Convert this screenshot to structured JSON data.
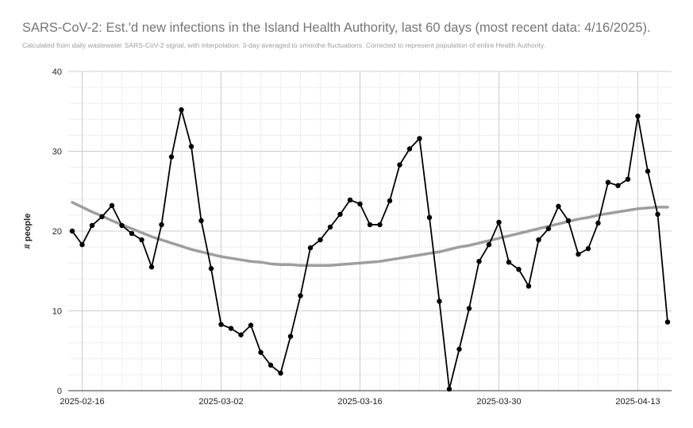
{
  "chart_data": {
    "type": "line",
    "title": "SARS-CoV-2: Est.'d new infections in the Island Health Authority, last 60 days (most recent data: 4/16/2025).",
    "subtitle": "Calculated from daily wastewater SARS-CoV-2 signal, with interpolation. 3-day averaged to smoothe fluctuations. Corrected to represent population of entire Health Authority.",
    "xlabel": "",
    "ylabel": "# people",
    "ylim": [
      0,
      40
    ],
    "yticks": [
      0,
      10,
      20,
      30,
      40
    ],
    "x_start_date": "2025-02-15",
    "xticks": [
      "2025-02-16",
      "2025-03-02",
      "2025-03-16",
      "2025-03-30",
      "2025-04-13"
    ],
    "grid": true,
    "legend": "none",
    "colors": {
      "series": "#000000",
      "trend": "#9e9e9e",
      "grid": "#e0e0e0",
      "axis": "#333333"
    },
    "series": [
      {
        "values": [
          20.0,
          18.3,
          20.7,
          21.8,
          23.2,
          20.7,
          19.7,
          18.9,
          15.5,
          20.8,
          29.3,
          35.2,
          30.6,
          21.3,
          15.3,
          8.3,
          7.8,
          7.0,
          8.2,
          4.8,
          3.2,
          2.2,
          6.8,
          11.9,
          17.9,
          18.9,
          20.5,
          22.1,
          23.9,
          23.4,
          20.8,
          20.8,
          23.8,
          28.3,
          30.3,
          31.6,
          21.7,
          11.2,
          0.2,
          5.2,
          10.3,
          16.2,
          18.3,
          21.1,
          16.1,
          15.2,
          13.1,
          18.9,
          20.3,
          23.1,
          21.3,
          17.1,
          17.8,
          21.0,
          26.1,
          25.7,
          26.5,
          34.4,
          27.5,
          22.1,
          8.6
        ]
      },
      {
        "kind": "trendline",
        "values": [
          23.6,
          23.0,
          22.4,
          21.9,
          21.3,
          20.8,
          20.3,
          19.8,
          19.3,
          18.9,
          18.5,
          18.1,
          17.7,
          17.4,
          17.1,
          16.8,
          16.6,
          16.4,
          16.2,
          16.1,
          15.9,
          15.8,
          15.8,
          15.7,
          15.7,
          15.7,
          15.7,
          15.8,
          15.9,
          16.0,
          16.1,
          16.2,
          16.4,
          16.6,
          16.8,
          17.0,
          17.2,
          17.4,
          17.7,
          18.0,
          18.2,
          18.5,
          18.8,
          19.1,
          19.4,
          19.7,
          20.0,
          20.3,
          20.6,
          20.9,
          21.2,
          21.5,
          21.7,
          22.0,
          22.2,
          22.4,
          22.6,
          22.8,
          22.9,
          23.0,
          23.0
        ]
      }
    ]
  }
}
